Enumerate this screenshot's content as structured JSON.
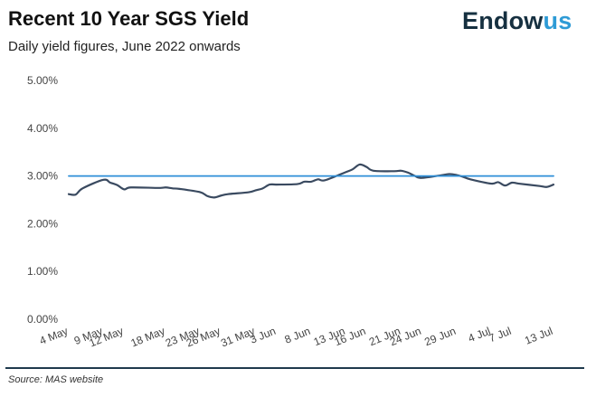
{
  "header": {
    "title": "Recent 10 Year SGS Yield",
    "subtitle": "Daily yield figures, June 2022 onwards"
  },
  "brand": {
    "part1": "Endow",
    "part2": "us",
    "color_dark": "#163040",
    "color_accent": "#2e9bd6"
  },
  "footer": {
    "source": "Source: MAS website"
  },
  "chart_data": {
    "type": "line",
    "title": "Recent 10 Year SGS Yield",
    "subtitle": "Daily yield figures, June 2022 onwards",
    "xlabel": "",
    "ylabel": "",
    "x_tick_labels": [
      "4 May",
      "9 May",
      "12 May",
      "18 May",
      "23 May",
      "26 May",
      "31 May",
      "3 Jun",
      "8 Jun",
      "13 Jun",
      "16 Jun",
      "21 Jun",
      "24 Jun",
      "29 Jun",
      "4 Jul",
      "7 Jul",
      "13 Jul"
    ],
    "y_tick_labels": [
      "0.00%",
      "1.00%",
      "2.00%",
      "3.00%",
      "4.00%",
      "5.00%"
    ],
    "ylim": [
      0,
      5
    ],
    "grid": false,
    "legend": "none",
    "series": [
      {
        "color": "#3a4a60",
        "x": [
          "4 May",
          "5 May",
          "6 May",
          "9 May",
          "10 May",
          "11 May",
          "12 May",
          "13 May",
          "17 May",
          "18 May",
          "19 May",
          "20 May",
          "23 May",
          "24 May",
          "25 May",
          "26 May",
          "27 May",
          "30 May",
          "31 May",
          "1 Jun",
          "2 Jun",
          "3 Jun",
          "6 Jun",
          "7 Jun",
          "8 Jun",
          "9 Jun",
          "10 Jun",
          "13 Jun",
          "14 Jun",
          "15 Jun",
          "16 Jun",
          "17 Jun",
          "20 Jun",
          "21 Jun",
          "22 Jun",
          "23 Jun",
          "24 Jun",
          "27 Jun",
          "28 Jun",
          "29 Jun",
          "30 Jun",
          "1 Jul",
          "4 Jul",
          "5 Jul",
          "6 Jul",
          "7 Jul",
          "8 Jul",
          "11 Jul",
          "12 Jul",
          "13 Jul"
        ],
        "values": [
          2.62,
          2.61,
          2.74,
          2.92,
          2.86,
          2.81,
          2.72,
          2.76,
          2.75,
          2.76,
          2.74,
          2.73,
          2.66,
          2.58,
          2.55,
          2.59,
          2.62,
          2.66,
          2.7,
          2.74,
          2.82,
          2.82,
          2.83,
          2.88,
          2.88,
          2.93,
          2.91,
          3.08,
          3.14,
          3.24,
          3.19,
          3.11,
          3.1,
          3.11,
          3.07,
          3.0,
          2.96,
          3.02,
          3.04,
          3.02,
          2.98,
          2.93,
          2.84,
          2.87,
          2.8,
          2.86,
          2.84,
          2.79,
          2.77,
          2.82
        ]
      },
      {
        "color": "#2e8fd8",
        "x": [
          "4 May",
          "13 Jul"
        ],
        "values": [
          3.0,
          3.0
        ]
      }
    ]
  }
}
